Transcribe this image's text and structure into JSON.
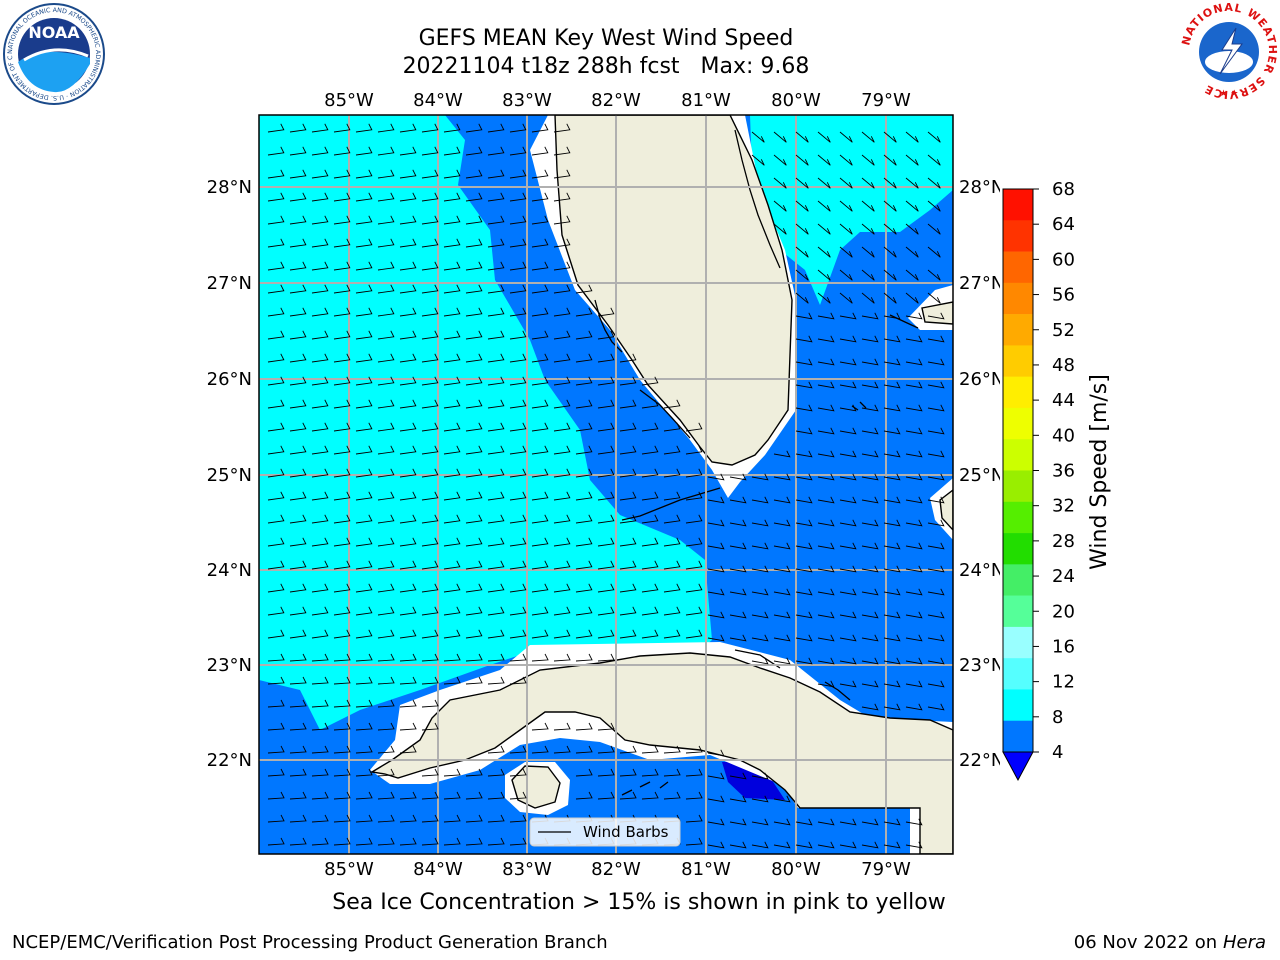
{
  "header": {
    "title": "GEFS MEAN Key West Wind Speed",
    "subtitle_run": "20221104 t18z 288h fcst",
    "subtitle_max": "Max: 9.68"
  },
  "logos": {
    "noaa": {
      "text": "NOAA",
      "ring_text": "NATIONAL OCEANIC AND ATMOSPHERIC ADMINISTRATION · U.S. DEPARTMENT OF COMMERCE"
    },
    "nws": {
      "ring_text": "NATIONAL WEATHER SERVICE"
    }
  },
  "map": {
    "lon_labels": [
      "85°W",
      "84°W",
      "83°W",
      "82°W",
      "81°W",
      "80°W",
      "79°W"
    ],
    "lat_labels": [
      "28°N",
      "27°N",
      "26°N",
      "25°N",
      "24°N",
      "23°N",
      "22°N"
    ],
    "legend_label": "Wind Barbs",
    "colors": {
      "land": "#efeedc",
      "band_4_8": "#0077ff",
      "band_8_12": "#00ffff",
      "band_below_4": "#0000dd",
      "grid": "#b0b0b0"
    }
  },
  "colorbar": {
    "label": "Wind Speed [m/s]",
    "ticks": [
      "68",
      "64",
      "60",
      "56",
      "52",
      "48",
      "44",
      "40",
      "36",
      "32",
      "28",
      "24",
      "20",
      "16",
      "12",
      "8",
      "4"
    ],
    "colors": [
      "#ff1100",
      "#ff3300",
      "#ff6600",
      "#ff8800",
      "#ffaa00",
      "#ffcc00",
      "#ffee00",
      "#eeff00",
      "#ccff00",
      "#99ee00",
      "#55ee00",
      "#22dd00",
      "#44ee66",
      "#55ff99",
      "#99ffff",
      "#55ffff",
      "#00ffff",
      "#0077ff"
    ],
    "under_color": "#0000ff"
  },
  "footer": {
    "sea_ice_note": "Sea Ice Concentration > 15% is shown in pink to yellow",
    "credit": "NCEP/EMC/Verification Post Processing Product Generation Branch",
    "date": "06 Nov 2022 on",
    "host": "Hera"
  }
}
